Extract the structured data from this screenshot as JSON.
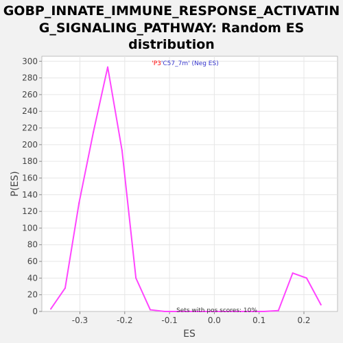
{
  "title_lines": [
    "GOBP_INNATE_IMMUNE_RESPONSE_ACTIVATIN",
    "G_SIGNALING_PATHWAY: Random ES",
    "distribution"
  ],
  "legend": {
    "part1": "'P3",
    "part2": "'C57_7m' (Neg ES)",
    "color1": "#ff0000",
    "color2": "#3333cc"
  },
  "note": "Sets with pos scores: 10%",
  "colors": {
    "line": "#ff44ff",
    "background": "#f2f2f2",
    "plot_bg": "#ffffff",
    "grid": "#e6e6e6"
  },
  "chart_data": {
    "type": "line",
    "xlabel": "ES",
    "ylabel": "P(ES)",
    "xlim": [
      -0.385,
      0.275
    ],
    "ylim": [
      0,
      306
    ],
    "xticks": [
      -0.3,
      -0.2,
      -0.1,
      0.0,
      0.1,
      0.2
    ],
    "xtick_labels": [
      "-0.3",
      "-0.2",
      "-0.1",
      "0.0",
      "0.1",
      "0.2"
    ],
    "yticks": [
      0,
      20,
      40,
      60,
      80,
      100,
      120,
      140,
      160,
      180,
      200,
      220,
      240,
      260,
      280,
      300
    ],
    "ytick_labels": [
      "0",
      "20",
      "40",
      "60",
      "80",
      "100",
      "120",
      "140",
      "160",
      "180",
      "200",
      "220",
      "240",
      "260",
      "280",
      "300"
    ],
    "grid": true,
    "series": [
      {
        "x": [
          -0.365,
          -0.333,
          -0.302,
          -0.27,
          -0.238,
          -0.206,
          -0.175,
          -0.143,
          -0.111,
          -0.08,
          -0.048,
          -0.016,
          0.016,
          0.048,
          0.08,
          0.111,
          0.143,
          0.175,
          0.206,
          0.238
        ],
        "y": [
          3,
          28,
          130,
          215,
          293,
          193,
          40,
          2,
          0,
          0,
          0,
          0,
          0,
          0,
          0,
          0,
          1,
          46,
          40,
          8
        ]
      }
    ]
  }
}
